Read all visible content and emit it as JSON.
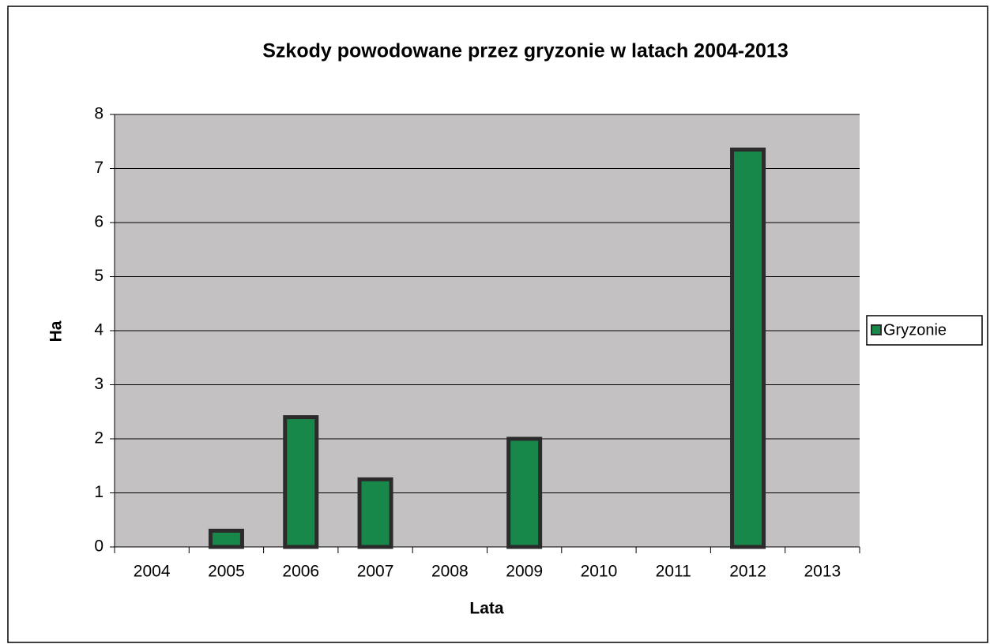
{
  "chart_data": {
    "type": "bar",
    "title": "Szkody powodowane przez gryzonie w latach 2004-2013",
    "x_label": "Lata",
    "y_label": "Ha",
    "categories": [
      "2004",
      "2005",
      "2006",
      "2007",
      "2008",
      "2009",
      "2010",
      "2011",
      "2012",
      "2013"
    ],
    "series": [
      {
        "name": "Gryzonie",
        "color": "#17884a",
        "values": [
          0,
          0.3,
          2.4,
          1.25,
          0,
          2.0,
          0,
          0,
          7.35,
          0
        ]
      }
    ],
    "ylim": [
      0,
      8
    ],
    "yticks": [
      0,
      1,
      2,
      3,
      4,
      5,
      6,
      7,
      8
    ],
    "grid": true,
    "legend": "right"
  }
}
